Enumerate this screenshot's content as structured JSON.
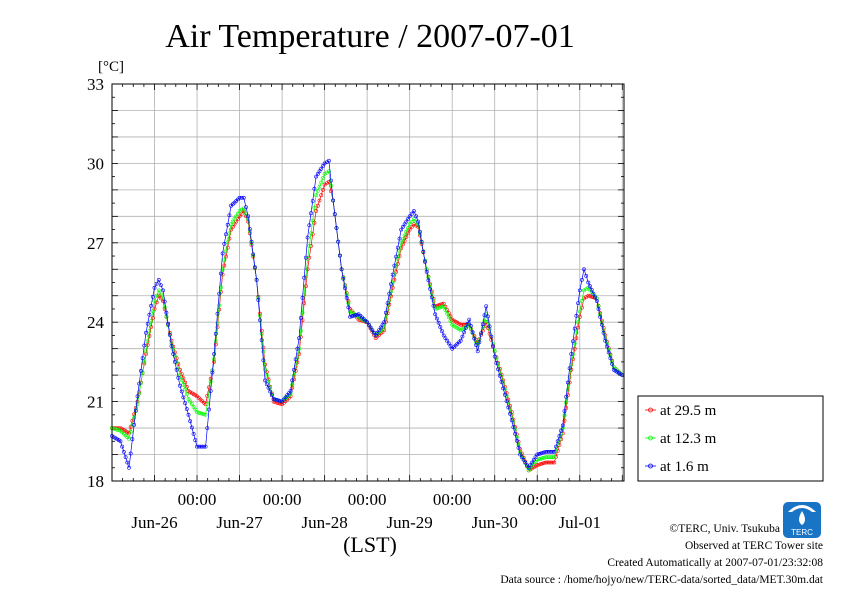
{
  "chart_data": {
    "type": "line",
    "title": "Air Temperature / 2007-07-01",
    "ylabel": "[°C]",
    "xlabel": "(LST)",
    "ylim": [
      18,
      33
    ],
    "yticks": [
      18,
      21,
      24,
      27,
      30,
      33
    ],
    "xlim": [
      0,
      6.02
    ],
    "grid": true,
    "legend_position": "right-outside",
    "xticks_time": [
      {
        "x": 1,
        "label": "00:00"
      },
      {
        "x": 2,
        "label": "00:00"
      },
      {
        "x": 3,
        "label": "00:00"
      },
      {
        "x": 4,
        "label": "00:00"
      },
      {
        "x": 5,
        "label": "00:00"
      }
    ],
    "xticks_date": [
      {
        "x": 0.5,
        "label": "Jun-26"
      },
      {
        "x": 1.5,
        "label": "Jun-27"
      },
      {
        "x": 2.5,
        "label": "Jun-28"
      },
      {
        "x": 3.5,
        "label": "Jun-29"
      },
      {
        "x": 4.5,
        "label": "Jun-30"
      },
      {
        "x": 5.5,
        "label": "Jul-01"
      }
    ],
    "x": [
      0.0,
      0.1,
      0.2,
      0.3,
      0.4,
      0.5,
      0.55,
      0.6,
      0.7,
      0.8,
      0.9,
      1.0,
      1.1,
      1.2,
      1.3,
      1.4,
      1.5,
      1.55,
      1.6,
      1.7,
      1.8,
      1.9,
      2.0,
      2.1,
      2.2,
      2.3,
      2.4,
      2.5,
      2.55,
      2.6,
      2.7,
      2.8,
      2.9,
      3.0,
      3.1,
      3.2,
      3.3,
      3.4,
      3.5,
      3.55,
      3.6,
      3.7,
      3.8,
      3.9,
      4.0,
      4.1,
      4.2,
      4.3,
      4.4,
      4.5,
      4.6,
      4.7,
      4.8,
      4.9,
      5.0,
      5.1,
      5.2,
      5.3,
      5.4,
      5.5,
      5.55,
      5.6,
      5.7,
      5.8,
      5.9,
      6.0
    ],
    "series": [
      {
        "name": "at 29.5 m",
        "color": "#ff0000",
        "values": [
          20.0,
          20.0,
          19.8,
          21.0,
          22.8,
          24.5,
          25.0,
          24.8,
          23.3,
          22.2,
          21.4,
          21.2,
          20.9,
          22.5,
          25.8,
          27.5,
          28.0,
          28.2,
          27.8,
          25.6,
          22.4,
          21.0,
          20.9,
          21.2,
          22.8,
          26.0,
          28.2,
          29.2,
          29.3,
          28.6,
          26.0,
          24.5,
          24.1,
          24.0,
          23.4,
          23.7,
          25.3,
          26.8,
          27.5,
          27.7,
          27.6,
          26.0,
          24.6,
          24.7,
          24.1,
          23.9,
          23.9,
          23.2,
          24.0,
          22.9,
          21.8,
          20.6,
          19.2,
          18.4,
          18.6,
          18.7,
          18.7,
          19.8,
          22.2,
          24.2,
          24.9,
          25.0,
          24.9,
          23.5,
          22.3,
          22.0
        ]
      },
      {
        "name": "at 12.3 m",
        "color": "#00ff00",
        "values": [
          20.0,
          19.9,
          19.6,
          20.9,
          22.9,
          24.8,
          25.2,
          24.9,
          23.2,
          22.0,
          21.1,
          20.6,
          20.5,
          22.6,
          26.0,
          27.7,
          28.2,
          28.3,
          27.9,
          25.6,
          22.2,
          21.1,
          21.0,
          21.3,
          23.0,
          26.4,
          28.8,
          29.6,
          29.7,
          28.6,
          26.0,
          24.4,
          24.2,
          24.0,
          23.5,
          23.8,
          25.5,
          27.0,
          27.7,
          27.9,
          27.7,
          26.0,
          24.5,
          24.6,
          23.9,
          23.7,
          23.9,
          23.1,
          24.3,
          22.9,
          21.7,
          20.5,
          19.1,
          18.4,
          18.8,
          18.9,
          18.9,
          20.0,
          22.4,
          24.4,
          25.2,
          25.3,
          24.9,
          23.4,
          22.3,
          22.0
        ]
      },
      {
        "name": "at 1.6 m",
        "color": "#0000ff",
        "values": [
          19.7,
          19.5,
          18.5,
          21.2,
          23.6,
          25.3,
          25.6,
          25.2,
          23.1,
          21.6,
          20.5,
          19.3,
          19.3,
          22.8,
          26.6,
          28.4,
          28.7,
          28.7,
          28.0,
          25.6,
          21.8,
          21.1,
          21.0,
          21.4,
          23.4,
          27.2,
          29.5,
          30.0,
          30.1,
          28.6,
          26.0,
          24.2,
          24.3,
          24.0,
          23.5,
          24.0,
          25.8,
          27.5,
          28.0,
          28.2,
          27.8,
          25.9,
          24.3,
          23.5,
          23.0,
          23.3,
          24.1,
          22.9,
          24.6,
          22.7,
          21.5,
          20.3,
          19.0,
          18.5,
          19.0,
          19.1,
          19.1,
          20.1,
          22.8,
          25.2,
          26.0,
          25.5,
          24.8,
          23.3,
          22.2,
          22.0
        ]
      }
    ]
  },
  "footer": {
    "logo_text": "TERC",
    "copyright": "©TERC, Univ. Tsukuba",
    "site": "Observed at TERC Tower site",
    "created": "Created Automatically at 2007-07-01/23:32:08",
    "source": "Data source : /home/hojyo/new/TERC-data/sorted_data/MET.30m.dat"
  },
  "colors": {
    "grid": "#b0b0b0",
    "plot_border": "#000000",
    "logo": "#1a74c6"
  }
}
